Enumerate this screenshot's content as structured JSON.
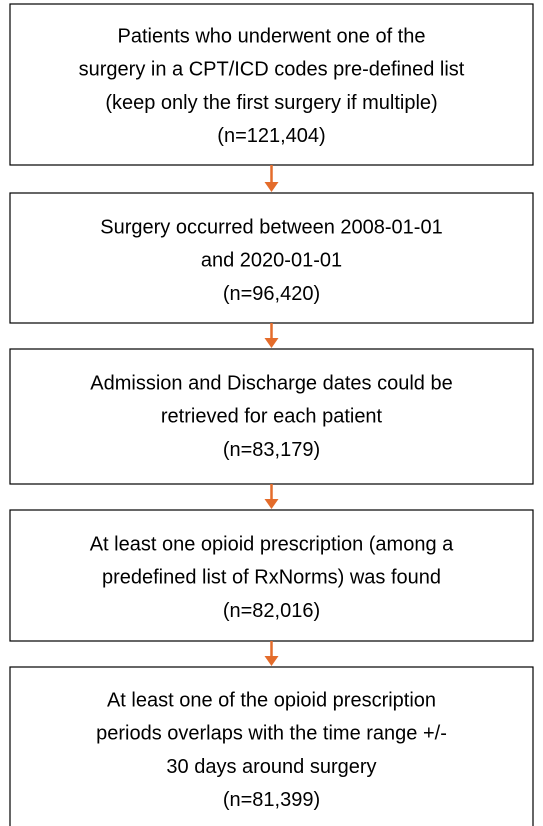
{
  "nodes": [
    {
      "lines": [
        "Patients who underwent one of the",
        "surgery in a CPT/ICD codes pre-defined list",
        "(keep only the first surgery if multiple)"
      ],
      "count": "(n=121,404)"
    },
    {
      "lines": [
        "Surgery occurred between 2008-01-01",
        "and 2020-01-01"
      ],
      "count": "(n=96,420)"
    },
    {
      "lines": [
        "Admission and Discharge dates could be",
        "retrieved for each patient"
      ],
      "count": "(n=83,179)"
    },
    {
      "lines": [
        "At least one opioid prescription (among a",
        "predefined list of RxNorms) was found"
      ],
      "count": "(n=82,016)"
    },
    {
      "lines": [
        "At least one of the opioid prescription",
        "periods overlaps with the time range +/-",
        "30 days around surgery"
      ],
      "count": "(n=81,399)"
    }
  ]
}
